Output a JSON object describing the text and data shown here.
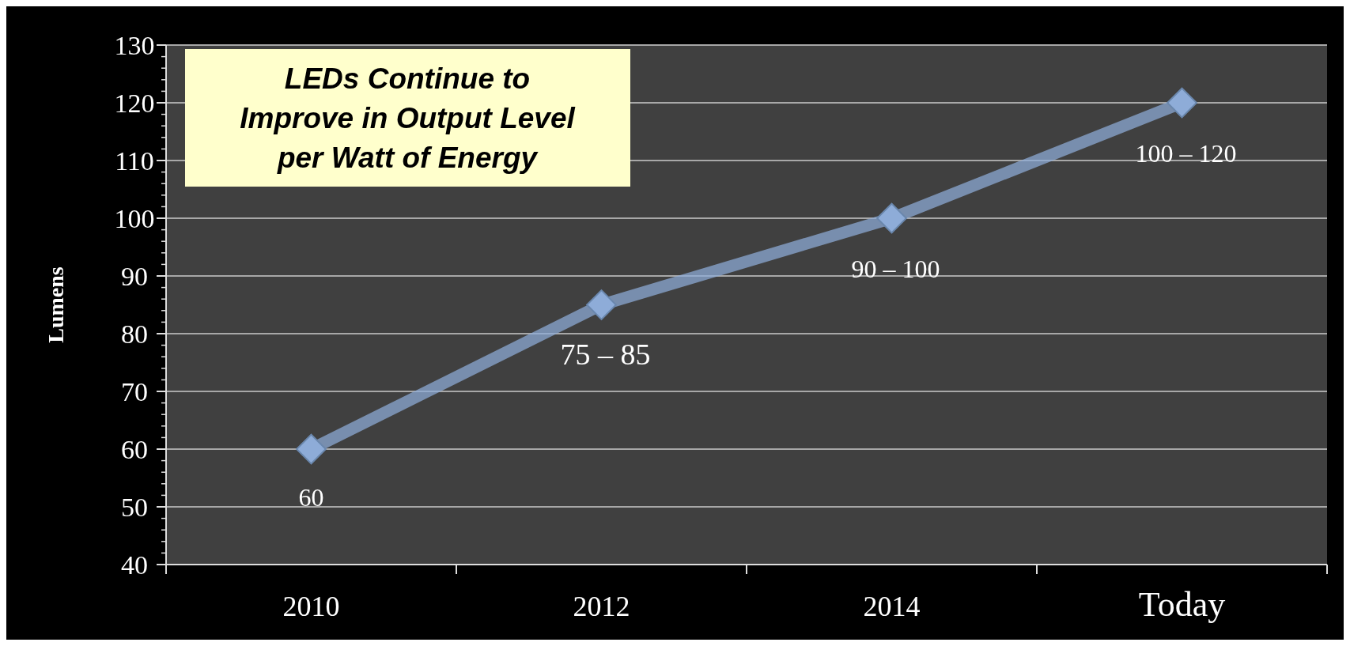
{
  "chart_data": {
    "type": "line",
    "title": "LEDs Continue to Improve in Output Level per Watt of Energy",
    "ylabel": "Lumens",
    "categories": [
      "2010",
      "2012",
      "2014",
      "Today"
    ],
    "series": [
      {
        "color": "#8eacd8",
        "values": [
          60,
          85,
          100,
          120
        ]
      }
    ],
    "annotations": [
      {
        "text": "60",
        "x": "2010",
        "y": 60
      },
      {
        "text": "75 – 85",
        "x": "2012",
        "y": 85
      },
      {
        "text": "90 – 100",
        "x": "2014",
        "y": 100
      },
      {
        "text": "100 – 120",
        "x": "Today",
        "y": 120
      }
    ],
    "ylim": [
      40,
      130
    ],
    "yticks": [
      40,
      50,
      60,
      70,
      80,
      90,
      100,
      110,
      120,
      130
    ],
    "grid": "y",
    "marker": "diamond",
    "line_style": "solid"
  }
}
